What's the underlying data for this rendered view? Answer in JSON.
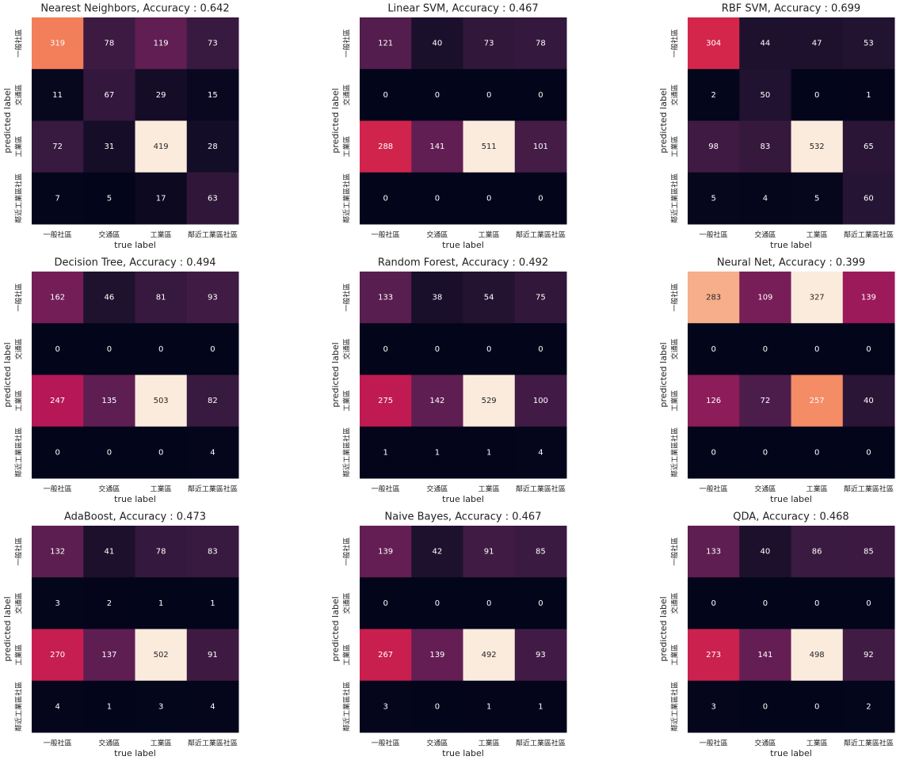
{
  "chart_data": [
    {
      "type": "heatmap",
      "title": "Nearest Neighbors,  Accuracy : 0.642",
      "xlabel": "true label",
      "ylabel": "predicted label",
      "cmap": "rocket",
      "x_categories": [
        "一般社區",
        "交通區",
        "工業區",
        "鄰近工業區社區"
      ],
      "y_categories": [
        "一般社區",
        "交通區",
        "工業區",
        "鄰近工業區社區"
      ],
      "values": [
        [
          319,
          78,
          119,
          73
        ],
        [
          11,
          67,
          29,
          15
        ],
        [
          72,
          31,
          419,
          28
        ],
        [
          7,
          5,
          17,
          63
        ]
      ]
    },
    {
      "type": "heatmap",
      "title": "Linear SVM,  Accuracy : 0.467",
      "xlabel": "true label",
      "ylabel": "predicted label",
      "cmap": "rocket",
      "x_categories": [
        "一般社區",
        "交通區",
        "工業區",
        "鄰近工業區社區"
      ],
      "y_categories": [
        "一般社區",
        "交通區",
        "工業區",
        "鄰近工業區社區"
      ],
      "values": [
        [
          121,
          40,
          73,
          78
        ],
        [
          0,
          0,
          0,
          0
        ],
        [
          288,
          141,
          511,
          101
        ],
        [
          0,
          0,
          0,
          0
        ]
      ]
    },
    {
      "type": "heatmap",
      "title": "RBF SVM,  Accuracy : 0.699",
      "xlabel": "true label",
      "ylabel": "predicted label",
      "cmap": "rocket",
      "x_categories": [
        "一般社區",
        "交通區",
        "工業區",
        "鄰近工業區社區"
      ],
      "y_categories": [
        "一般社區",
        "交通區",
        "工業區",
        "鄰近工業區社區"
      ],
      "values": [
        [
          304,
          44,
          47,
          53
        ],
        [
          2,
          50,
          0,
          1
        ],
        [
          98,
          83,
          532,
          65
        ],
        [
          5,
          4,
          5,
          60
        ]
      ]
    },
    {
      "type": "heatmap",
      "title": "Decision Tree,  Accuracy : 0.494",
      "xlabel": "true label",
      "ylabel": "predicted label",
      "cmap": "rocket",
      "x_categories": [
        "一般社區",
        "交通區",
        "工業區",
        "鄰近工業區社區"
      ],
      "y_categories": [
        "一般社區",
        "交通區",
        "工業區",
        "鄰近工業區社區"
      ],
      "values": [
        [
          162,
          46,
          81,
          93
        ],
        [
          0,
          0,
          0,
          0
        ],
        [
          247,
          135,
          503,
          82
        ],
        [
          0,
          0,
          0,
          4
        ]
      ]
    },
    {
      "type": "heatmap",
      "title": "Random Forest,  Accuracy : 0.492",
      "xlabel": "true label",
      "ylabel": "predicted label",
      "cmap": "rocket",
      "x_categories": [
        "一般社區",
        "交通區",
        "工業區",
        "鄰近工業區社區"
      ],
      "y_categories": [
        "一般社區",
        "交通區",
        "工業區",
        "鄰近工業區社區"
      ],
      "values": [
        [
          133,
          38,
          54,
          75
        ],
        [
          0,
          0,
          0,
          0
        ],
        [
          275,
          142,
          529,
          100
        ],
        [
          1,
          1,
          1,
          4
        ]
      ]
    },
    {
      "type": "heatmap",
      "title": "Neural Net,  Accuracy : 0.399",
      "xlabel": "true label",
      "ylabel": "predicted label",
      "cmap": "rocket",
      "x_categories": [
        "一般社區",
        "交通區",
        "工業區",
        "鄰近工業區社區"
      ],
      "y_categories": [
        "一般社區",
        "交通區",
        "工業區",
        "鄰近工業區社區"
      ],
      "values": [
        [
          283,
          109,
          327,
          139
        ],
        [
          0,
          0,
          0,
          0
        ],
        [
          126,
          72,
          257,
          40
        ],
        [
          0,
          0,
          0,
          0
        ]
      ]
    },
    {
      "type": "heatmap",
      "title": "AdaBoost,  Accuracy : 0.473",
      "xlabel": "true label",
      "ylabel": "predicted label",
      "cmap": "rocket",
      "x_categories": [
        "一般社區",
        "交通區",
        "工業區",
        "鄰近工業區社區"
      ],
      "y_categories": [
        "一般社區",
        "交通區",
        "工業區",
        "鄰近工業區社區"
      ],
      "values": [
        [
          132,
          41,
          78,
          83
        ],
        [
          3,
          2,
          1,
          1
        ],
        [
          270,
          137,
          502,
          91
        ],
        [
          4,
          1,
          3,
          4
        ]
      ]
    },
    {
      "type": "heatmap",
      "title": "Naive Bayes,  Accuracy : 0.467",
      "xlabel": "true label",
      "ylabel": "predicted label",
      "cmap": "rocket",
      "x_categories": [
        "一般社區",
        "交通區",
        "工業區",
        "鄰近工業區社區"
      ],
      "y_categories": [
        "一般社區",
        "交通區",
        "工業區",
        "鄰近工業區社區"
      ],
      "values": [
        [
          139,
          42,
          91,
          85
        ],
        [
          0,
          0,
          0,
          0
        ],
        [
          267,
          139,
          492,
          93
        ],
        [
          3,
          0,
          1,
          1
        ]
      ]
    },
    {
      "type": "heatmap",
      "title": "QDA,  Accuracy : 0.468",
      "xlabel": "true label",
      "ylabel": "predicted label",
      "cmap": "rocket",
      "x_categories": [
        "一般社區",
        "交通區",
        "工業區",
        "鄰近工業區社區"
      ],
      "y_categories": [
        "一般社區",
        "交通區",
        "工業區",
        "鄰近工業區社區"
      ],
      "values": [
        [
          133,
          40,
          86,
          85
        ],
        [
          0,
          0,
          0,
          0
        ],
        [
          273,
          141,
          498,
          92
        ],
        [
          3,
          0,
          0,
          2
        ]
      ]
    }
  ]
}
